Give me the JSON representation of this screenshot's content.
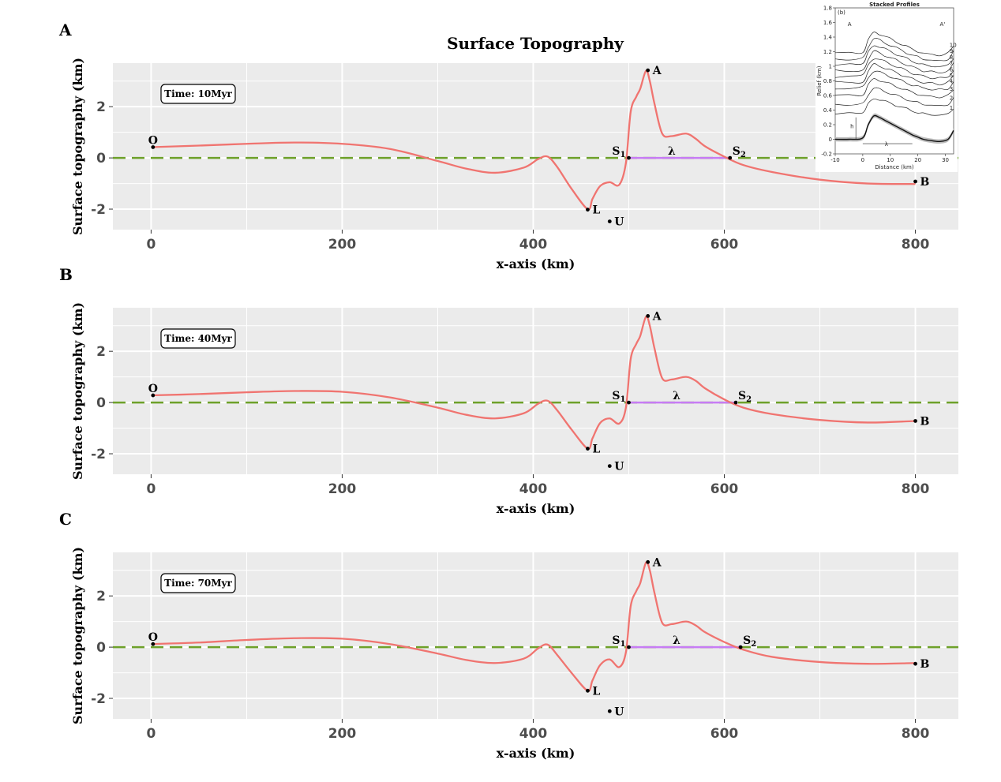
{
  "figure": {
    "title": "Surface Topography"
  },
  "chart_data": [
    {
      "type": "line",
      "panel": "A",
      "time_label": "Time: 10Myr",
      "xlabel": "x-axis (km)",
      "ylabel": "Surface topography (km)",
      "xlim": [
        -40,
        845
      ],
      "ylim": [
        -2.8,
        3.7
      ],
      "xticks": [
        "0",
        "200",
        "400",
        "600",
        "800"
      ],
      "yticks": [
        "-2",
        "0",
        "2"
      ],
      "grid": true,
      "series": [
        {
          "color": "#f07470",
          "x": [
            0,
            50,
            100,
            150,
            200,
            250,
            300,
            330,
            360,
            390,
            405,
            415,
            425,
            440,
            457,
            462,
            470,
            480,
            490,
            497,
            502,
            508,
            512,
            518,
            522,
            527,
            535,
            545,
            560,
            570,
            580,
            600,
            620,
            650,
            700,
            750,
            800
          ],
          "y": [
            0.42,
            0.48,
            0.55,
            0.6,
            0.55,
            0.35,
            -0.12,
            -0.42,
            -0.58,
            -0.38,
            -0.05,
            0.05,
            -0.35,
            -1.2,
            -2.0,
            -1.6,
            -1.1,
            -0.95,
            -1.05,
            -0.2,
            1.8,
            2.4,
            2.7,
            3.4,
            3.0,
            2.1,
            0.95,
            0.85,
            0.95,
            0.75,
            0.45,
            0.05,
            -0.28,
            -0.55,
            -0.85,
            -1.0,
            -1.02
          ]
        }
      ],
      "baseline": {
        "value": 0,
        "color": "#6ea12a"
      },
      "wavelength_segment": {
        "x": [
          500,
          606
        ],
        "color": "#c77cf5"
      },
      "points": [
        {
          "label": "O",
          "x": 2,
          "y": 0.42
        },
        {
          "label": "A",
          "x": 520,
          "y": 3.42
        },
        {
          "label": "S",
          "sub": "1",
          "x": 500,
          "y": 0
        },
        {
          "label": "S",
          "sub": "2",
          "x": 606,
          "y": 0
        },
        {
          "label": "L",
          "x": 457,
          "y": -2.02
        },
        {
          "label": "U",
          "x": 480,
          "y": -2.48
        },
        {
          "label": "B",
          "x": 800,
          "y": -0.92
        }
      ],
      "lambda_label": {
        "text": "λ",
        "x": 545
      }
    },
    {
      "type": "line",
      "panel": "B",
      "time_label": "Time: 40Myr",
      "xlabel": "x-axis (km)",
      "ylabel": "Surface topography (km)",
      "xlim": [
        -40,
        845
      ],
      "ylim": [
        -2.8,
        3.7
      ],
      "xticks": [
        "0",
        "200",
        "400",
        "600",
        "800"
      ],
      "yticks": [
        "-2",
        "0",
        "2"
      ],
      "grid": true,
      "series": [
        {
          "color": "#f07470",
          "x": [
            0,
            50,
            100,
            150,
            200,
            250,
            300,
            330,
            360,
            390,
            405,
            415,
            425,
            440,
            457,
            462,
            470,
            480,
            490,
            497,
            502,
            508,
            512,
            518,
            522,
            527,
            535,
            545,
            560,
            570,
            580,
            600,
            620,
            650,
            700,
            750,
            800
          ],
          "y": [
            0.28,
            0.33,
            0.4,
            0.45,
            0.42,
            0.2,
            -0.2,
            -0.48,
            -0.62,
            -0.42,
            -0.05,
            0.07,
            -0.3,
            -1.05,
            -1.8,
            -1.4,
            -0.8,
            -0.62,
            -0.82,
            -0.2,
            1.7,
            2.3,
            2.6,
            3.35,
            3.0,
            2.1,
            0.95,
            0.9,
            1.0,
            0.85,
            0.55,
            0.12,
            -0.2,
            -0.45,
            -0.68,
            -0.78,
            -0.72
          ]
        }
      ],
      "baseline": {
        "value": 0,
        "color": "#6ea12a"
      },
      "wavelength_segment": {
        "x": [
          500,
          612
        ],
        "color": "#c77cf5"
      },
      "points": [
        {
          "label": "O",
          "x": 2,
          "y": 0.28
        },
        {
          "label": "A",
          "x": 520,
          "y": 3.38
        },
        {
          "label": "S",
          "sub": "1",
          "x": 500,
          "y": 0
        },
        {
          "label": "S",
          "sub": "2",
          "x": 612,
          "y": 0
        },
        {
          "label": "L",
          "x": 457,
          "y": -1.8
        },
        {
          "label": "U",
          "x": 480,
          "y": -2.48
        },
        {
          "label": "B",
          "x": 800,
          "y": -0.72
        }
      ],
      "lambda_label": {
        "text": "λ",
        "x": 550
      }
    },
    {
      "type": "line",
      "panel": "C",
      "time_label": "Time: 70Myr",
      "xlabel": "x-axis (km)",
      "ylabel": "Surface topography (km)",
      "xlim": [
        -40,
        845
      ],
      "ylim": [
        -2.8,
        3.7
      ],
      "xticks": [
        "0",
        "200",
        "400",
        "600",
        "800"
      ],
      "yticks": [
        "-2",
        "0",
        "2"
      ],
      "grid": true,
      "series": [
        {
          "color": "#f07470",
          "x": [
            0,
            50,
            100,
            150,
            200,
            250,
            300,
            330,
            360,
            390,
            405,
            415,
            425,
            440,
            457,
            462,
            470,
            480,
            490,
            497,
            502,
            508,
            512,
            518,
            522,
            527,
            535,
            545,
            560,
            570,
            580,
            600,
            620,
            650,
            700,
            750,
            800
          ],
          "y": [
            0.12,
            0.18,
            0.28,
            0.35,
            0.33,
            0.12,
            -0.25,
            -0.5,
            -0.62,
            -0.45,
            -0.05,
            0.1,
            -0.3,
            -1.0,
            -1.7,
            -1.3,
            -0.7,
            -0.48,
            -0.78,
            -0.2,
            1.6,
            2.2,
            2.5,
            3.3,
            3.0,
            2.1,
            0.95,
            0.9,
            1.0,
            0.85,
            0.58,
            0.2,
            -0.1,
            -0.38,
            -0.58,
            -0.65,
            -0.62
          ]
        }
      ],
      "baseline": {
        "value": 0,
        "color": "#6ea12a"
      },
      "wavelength_segment": {
        "x": [
          500,
          617
        ],
        "color": "#c77cf5"
      },
      "points": [
        {
          "label": "O",
          "x": 2,
          "y": 0.12
        },
        {
          "label": "A",
          "x": 520,
          "y": 3.32
        },
        {
          "label": "S",
          "sub": "1",
          "x": 500,
          "y": 0
        },
        {
          "label": "S",
          "sub": "2",
          "x": 617,
          "y": 0
        },
        {
          "label": "L",
          "x": 457,
          "y": -1.7
        },
        {
          "label": "U",
          "x": 480,
          "y": -2.5
        },
        {
          "label": "B",
          "x": 800,
          "y": -0.65
        }
      ],
      "lambda_label": {
        "text": "λ",
        "x": 550
      }
    },
    {
      "type": "line",
      "panel": "inset",
      "title": "Stacked Profiles",
      "panel_tag": "(b)",
      "xlabel": "Distance (km)",
      "ylabel": "Relief (km)",
      "xlim": [
        -10,
        33
      ],
      "ylim": [
        -0.2,
        1.8
      ],
      "xticks": [
        "-10",
        "0",
        "10",
        "20",
        "30"
      ],
      "yticks": [
        "-0.2",
        "0",
        "0.2",
        "0.4",
        "0.6",
        "0.8",
        "1",
        "1.2",
        "1.4",
        "1.6",
        "1.8"
      ],
      "left_marker": "A",
      "right_marker": "A'",
      "h_label": "h",
      "lambda_label": "λ",
      "profile_labels": [
        "1",
        "2",
        "3",
        "4",
        "5",
        "6",
        "7",
        "8",
        "9",
        "10"
      ],
      "profile_offsets": [
        0.35,
        0.48,
        0.6,
        0.7,
        0.78,
        0.86,
        0.94,
        1.02,
        1.1,
        1.18
      ],
      "mean_profile": {
        "x": [
          -10,
          -5,
          0,
          2,
          4,
          6,
          8,
          10,
          12,
          14,
          16,
          18,
          20,
          22,
          25,
          28,
          31,
          33
        ],
        "y": [
          0,
          0,
          0.02,
          0.2,
          0.32,
          0.3,
          0.26,
          0.22,
          0.18,
          0.14,
          0.1,
          0.06,
          0.03,
          0.0,
          -0.02,
          -0.03,
          0.0,
          0.12
        ]
      }
    }
  ]
}
